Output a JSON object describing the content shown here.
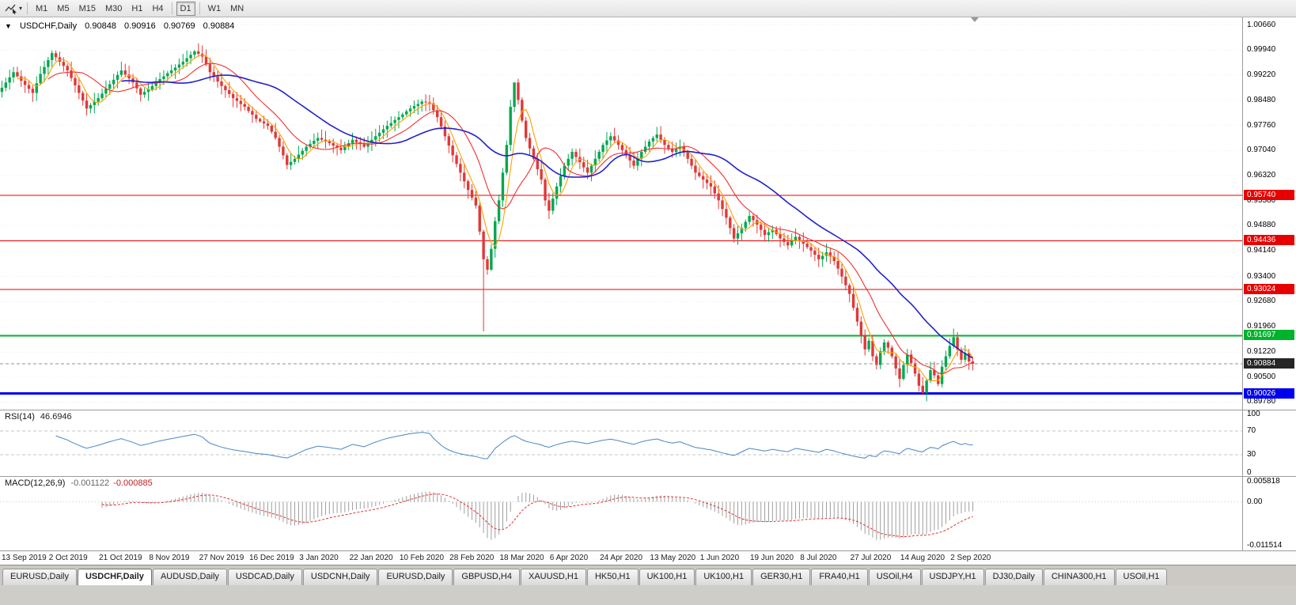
{
  "icons": {
    "one_click_arrow": "▼",
    "dropdown": "▾"
  },
  "toolbar": {
    "timeframes": [
      {
        "label": "M1",
        "active": false
      },
      {
        "label": "M5",
        "active": false
      },
      {
        "label": "M15",
        "active": false
      },
      {
        "label": "M30",
        "active": false
      },
      {
        "label": "H1",
        "active": false
      },
      {
        "label": "H4",
        "active": false
      },
      {
        "label": "D1",
        "active": true
      },
      {
        "label": "W1",
        "active": false
      },
      {
        "label": "MN",
        "active": false
      }
    ]
  },
  "chart": {
    "title": "USDCHF,Daily",
    "ohlc": {
      "open": "0.90848",
      "high": "0.90916",
      "low": "0.90769",
      "close": "0.90884"
    },
    "y_axis_labels": [
      "1.00660",
      "0.99940",
      "0.99220",
      "0.98480",
      "0.97760",
      "0.97040",
      "0.96320",
      "0.95580",
      "0.94880",
      "0.94140",
      "0.93400",
      "0.92680",
      "0.91960",
      "0.91220",
      "0.90500",
      "0.89780"
    ],
    "x_axis_labels": [
      "13 Sep 2019",
      "2 Oct 2019",
      "21 Oct 2019",
      "8 Nov 2019",
      "27 Nov 2019",
      "16 Dec 2019",
      "3 Jan 2020",
      "22 Jan 2020",
      "10 Feb 2020",
      "28 Feb 2020",
      "18 Mar 2020",
      "6 Apr 2020",
      "24 Apr 2020",
      "13 May 2020",
      "1 Jun 2020",
      "19 Jun 2020",
      "8 Jul 2020",
      "27 Jul 2020",
      "14 Aug 2020",
      "2 Sep 2020"
    ],
    "plot_range": {
      "min": 0.8956,
      "max": 1.0088
    },
    "h_lines": [
      {
        "name": "resistance-1",
        "price": 0.9574,
        "label": "0.95740",
        "color": "#e80000",
        "width": 1
      },
      {
        "name": "resistance-2",
        "price": 0.94436,
        "label": "0.94436",
        "color": "#e80000",
        "width": 1
      },
      {
        "name": "resistance-3",
        "price": 0.93024,
        "label": "0.93024",
        "color": "#e80000",
        "width": 1
      },
      {
        "name": "support-green",
        "price": 0.91697,
        "label": "0.91697",
        "color": "#00b32c",
        "width": 2
      },
      {
        "name": "support-blue",
        "price": 0.90026,
        "label": "0.90026",
        "color": "#0000f0",
        "width": 3
      }
    ],
    "current_price": {
      "value": 0.90884,
      "label": "0.90884",
      "box_color": "#262626",
      "line_color": "#8f8f8f"
    }
  },
  "chart_data": {
    "type": "candlestick",
    "symbol": "USDCHF",
    "timeframe": "Daily",
    "title": "USDCHF,Daily",
    "ylim": [
      0.8978,
      1.0066
    ],
    "up_color": "#00a84f",
    "down_color": "#e03838",
    "closes": [
      0.9885,
      0.99,
      0.9915,
      0.993,
      0.9918,
      0.9905,
      0.9893,
      0.9882,
      0.987,
      0.9898,
      0.9925,
      0.9945,
      0.9965,
      0.9985,
      0.9973,
      0.996,
      0.9948,
      0.9935,
      0.9913,
      0.9892,
      0.987,
      0.9848,
      0.9825,
      0.9835,
      0.9845,
      0.9855,
      0.9868,
      0.9882,
      0.9895,
      0.9908,
      0.9922,
      0.9935,
      0.9923,
      0.9912,
      0.99,
      0.9883,
      0.9865,
      0.9873,
      0.988,
      0.989,
      0.99,
      0.991,
      0.9918,
      0.9927,
      0.9935,
      0.9943,
      0.9952,
      0.996,
      0.997,
      0.998,
      0.999,
      0.9983,
      0.9975,
      0.9953,
      0.993,
      0.9917,
      0.9903,
      0.989,
      0.9878,
      0.9867,
      0.9855,
      0.9847,
      0.9838,
      0.983,
      0.9818,
      0.9807,
      0.9795,
      0.9788,
      0.9782,
      0.9775,
      0.9758,
      0.974,
      0.9715,
      0.969,
      0.9662,
      0.9671,
      0.968,
      0.9692,
      0.9703,
      0.9715,
      0.9723,
      0.9732,
      0.974,
      0.9735,
      0.973,
      0.9725,
      0.9718,
      0.9712,
      0.9705,
      0.9715,
      0.9725,
      0.9735,
      0.9728,
      0.9722,
      0.9715,
      0.9725,
      0.9735,
      0.9745,
      0.9755,
      0.9765,
      0.9775,
      0.9783,
      0.9792,
      0.98,
      0.9808,
      0.9817,
      0.9825,
      0.9832,
      0.9838,
      0.9845,
      0.9843,
      0.984,
      0.982,
      0.98,
      0.9773,
      0.9745,
      0.9718,
      0.969,
      0.9665,
      0.964,
      0.9615,
      0.959,
      0.9568,
      0.9545,
      0.947,
      0.939,
      0.936,
      0.942,
      0.95,
      0.956,
      0.964,
      0.972,
      0.983,
      0.99,
      0.985,
      0.979,
      0.974,
      0.971,
      0.968,
      0.965,
      0.962,
      0.956,
      0.953,
      0.9565,
      0.96,
      0.963,
      0.966,
      0.968,
      0.97,
      0.9685,
      0.967,
      0.9655,
      0.964,
      0.966,
      0.968,
      0.97,
      0.972,
      0.9733,
      0.9745,
      0.9733,
      0.972,
      0.9705,
      0.969,
      0.9675,
      0.966,
      0.968,
      0.97,
      0.9715,
      0.973,
      0.974,
      0.975,
      0.9735,
      0.972,
      0.971,
      0.97,
      0.9708,
      0.9715,
      0.9698,
      0.968,
      0.966,
      0.964,
      0.963,
      0.962,
      0.961,
      0.96,
      0.958,
      0.956,
      0.9535,
      0.951,
      0.948,
      0.945,
      0.9465,
      0.948,
      0.9498,
      0.9515,
      0.9503,
      0.949,
      0.9475,
      0.946,
      0.9468,
      0.9475,
      0.9463,
      0.945,
      0.944,
      0.943,
      0.9443,
      0.9455,
      0.9445,
      0.9435,
      0.9425,
      0.9415,
      0.9403,
      0.939,
      0.94,
      0.941,
      0.9398,
      0.9385,
      0.9363,
      0.934,
      0.9315,
      0.929,
      0.925,
      0.921,
      0.917,
      0.913,
      0.9155,
      0.911,
      0.9085,
      0.9125,
      0.915,
      0.9135,
      0.911,
      0.9075,
      0.9045,
      0.9085,
      0.9115,
      0.909,
      0.906,
      0.9025,
      0.9005,
      0.904,
      0.907,
      0.9055,
      0.903,
      0.908,
      0.911,
      0.914,
      0.9165,
      0.913,
      0.91,
      0.912,
      0.9095,
      0.90884
    ],
    "special_wicks": {
      "125": {
        "low": 0.9182
      },
      "133": {
        "high": 0.9901
      },
      "239": {
        "low": 0.8998
      },
      "247": {
        "high": 0.919
      }
    },
    "moving_averages": [
      {
        "name": "ma-fast",
        "period": 5,
        "color": "#ffa200"
      },
      {
        "name": "ma-mid",
        "period": 13,
        "color": "#f03030"
      },
      {
        "name": "ma-slow",
        "period": 32,
        "color": "#2121cc"
      }
    ],
    "h_lines": [
      0.9574,
      0.94436,
      0.93024,
      0.91697,
      0.90026
    ],
    "last_price": 0.90884
  },
  "rsi": {
    "label": "RSI(14)",
    "value": "46.6946",
    "period": 14,
    "line_color": "#4a86c6",
    "levels": [
      {
        "v": 100,
        "label": "100"
      },
      {
        "v": 70,
        "label": "70"
      },
      {
        "v": 30,
        "label": "30"
      },
      {
        "v": 0,
        "label": "0"
      }
    ]
  },
  "macd": {
    "label": "MACD(12,26,9)",
    "value_main": "-0.001122",
    "value_signal": "-0.000885",
    "fast": 12,
    "slow": 26,
    "signal": 9,
    "range": {
      "min": -0.011514,
      "max": 0.005818
    },
    "axis_labels": [
      {
        "v": 0.005818,
        "label": "0.005818"
      },
      {
        "v": 0,
        "label": "0.00"
      },
      {
        "v": -0.011514,
        "label": "-0.011514"
      }
    ],
    "hist_color": "#9e9e9e",
    "signal_color": "#e03131"
  },
  "tabs": [
    {
      "label": "EURUSD,Daily",
      "active": false
    },
    {
      "label": "USDCHF,Daily",
      "active": true
    },
    {
      "label": "AUDUSD,Daily",
      "active": false
    },
    {
      "label": "USDCAD,Daily",
      "active": false
    },
    {
      "label": "USDCNH,Daily",
      "active": false
    },
    {
      "label": "EURUSD,Daily",
      "active": false
    },
    {
      "label": "GBPUSD,H4",
      "active": false
    },
    {
      "label": "XAUUSD,H1",
      "active": false
    },
    {
      "label": "HK50,H1",
      "active": false
    },
    {
      "label": "UK100,H1",
      "active": false
    },
    {
      "label": "UK100,H1",
      "active": false
    },
    {
      "label": "GER30,H1",
      "active": false
    },
    {
      "label": "FRA40,H1",
      "active": false
    },
    {
      "label": "USOil,H4",
      "active": false
    },
    {
      "label": "USDJPY,H1",
      "active": false
    },
    {
      "label": "DJ30,Daily",
      "active": false
    },
    {
      "label": "CHINA300,H1",
      "active": false
    },
    {
      "label": "USOil,H1",
      "active": false
    }
  ]
}
